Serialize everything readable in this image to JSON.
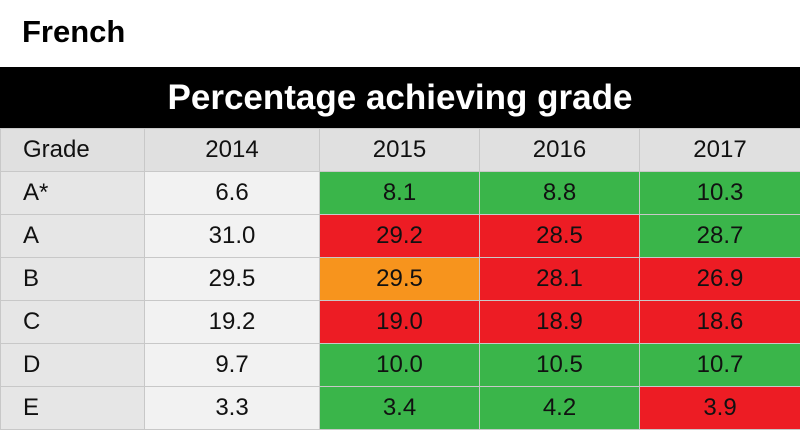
{
  "subject": "French",
  "banner": "Percentage achieving grade",
  "colors": {
    "up": "#3ab54a",
    "down": "#ed1c24",
    "same": "#f7941d",
    "header_bg": "#e0e0e0",
    "banner_bg": "#000000"
  },
  "chart_data": {
    "type": "table",
    "title": "Percentage achieving grade",
    "columns": [
      "Grade",
      "2014",
      "2015",
      "2016",
      "2017"
    ],
    "rows": [
      {
        "grade": "A*",
        "values": [
          "6.6",
          "8.1",
          "8.8",
          "10.3"
        ],
        "status": [
          "none",
          "up",
          "up",
          "up"
        ]
      },
      {
        "grade": "A",
        "values": [
          "31.0",
          "29.2",
          "28.5",
          "28.7"
        ],
        "status": [
          "none",
          "down",
          "down",
          "up"
        ]
      },
      {
        "grade": "B",
        "values": [
          "29.5",
          "29.5",
          "28.1",
          "26.9"
        ],
        "status": [
          "none",
          "same",
          "down",
          "down"
        ]
      },
      {
        "grade": "C",
        "values": [
          "19.2",
          "19.0",
          "18.9",
          "18.6"
        ],
        "status": [
          "none",
          "down",
          "down",
          "down"
        ]
      },
      {
        "grade": "D",
        "values": [
          "9.7",
          "10.0",
          "10.5",
          "10.7"
        ],
        "status": [
          "none",
          "up",
          "up",
          "up"
        ]
      },
      {
        "grade": "E",
        "values": [
          "3.3",
          "3.4",
          "4.2",
          "3.9"
        ],
        "status": [
          "none",
          "up",
          "up",
          "down"
        ]
      }
    ]
  }
}
